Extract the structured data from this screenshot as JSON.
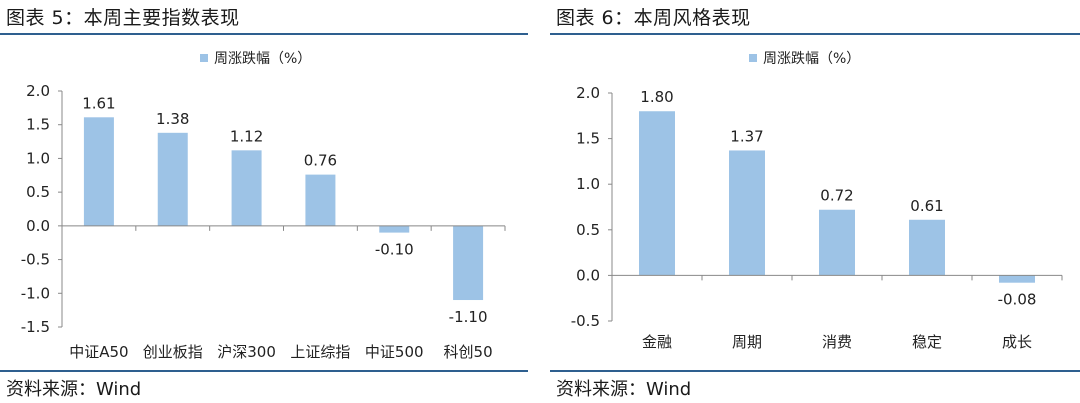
{
  "panels": [
    {
      "title": "图表 5：本周主要指数表现",
      "source": "资料来源：Wind",
      "chart_data": {
        "type": "bar",
        "legend": "周涨跌幅（%）",
        "legend_position": "top-center",
        "categories": [
          "中证A50",
          "创业板指",
          "沪深300",
          "上证综指",
          "中证500",
          "科创50"
        ],
        "series": [
          {
            "name": "周涨跌幅（%）",
            "values": [
              1.61,
              1.38,
              1.12,
              0.76,
              -0.1,
              -1.1
            ]
          }
        ],
        "data_labels": [
          "1.61",
          "1.38",
          "1.12",
          "0.76",
          "-0.10",
          "-1.10"
        ],
        "y_ticks": [
          "2.0",
          "1.5",
          "1.0",
          "0.5",
          "0.0",
          "-0.5",
          "-1.0",
          "-1.5"
        ],
        "ylim": [
          -1.5,
          2.0
        ],
        "grid": false,
        "bar_color": "#9dc3e6"
      }
    },
    {
      "title": "图表 6：本周风格表现",
      "source": "资料来源：Wind",
      "chart_data": {
        "type": "bar",
        "legend": "周涨跌幅（%）",
        "legend_position": "top-center",
        "categories": [
          "金融",
          "周期",
          "消费",
          "稳定",
          "成长"
        ],
        "series": [
          {
            "name": "周涨跌幅（%）",
            "values": [
              1.8,
              1.37,
              0.72,
              0.61,
              -0.08
            ]
          }
        ],
        "data_labels": [
          "1.80",
          "1.37",
          "0.72",
          "0.61",
          "-0.08"
        ],
        "y_ticks": [
          "2.0",
          "1.5",
          "1.0",
          "0.5",
          "0.0",
          "-0.5"
        ],
        "ylim": [
          -0.5,
          2.0
        ],
        "grid": false,
        "bar_color": "#9dc3e6"
      }
    }
  ]
}
